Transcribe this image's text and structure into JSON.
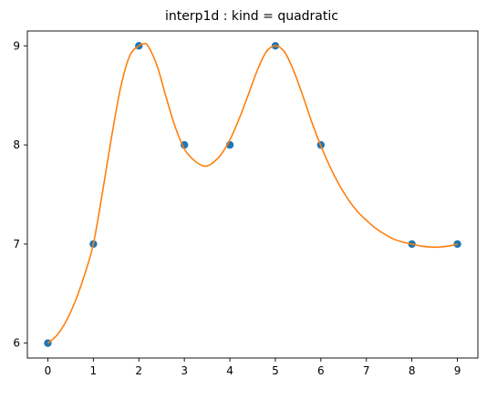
{
  "chart_data": {
    "type": "scatter",
    "title": "interp1d : kind = quadratic",
    "xlabel": "",
    "ylabel": "",
    "xlim": [
      -0.45,
      9.45
    ],
    "ylim": [
      5.85,
      9.15
    ],
    "xticks": [
      0,
      1,
      2,
      3,
      4,
      5,
      6,
      7,
      8,
      9
    ],
    "xtick_labels": [
      "0",
      "1",
      "2",
      "3",
      "4",
      "5",
      "6",
      "7",
      "8",
      "9"
    ],
    "yticks": [
      6,
      7,
      8,
      9
    ],
    "ytick_labels": [
      "6",
      "7",
      "8",
      "9"
    ],
    "grid": false,
    "legend": "none",
    "series": [
      {
        "kind": "points",
        "color": "#1f77b4",
        "x": [
          0,
          1,
          2,
          3,
          4,
          5,
          6,
          8,
          9
        ],
        "y": [
          6,
          7,
          9,
          8,
          8,
          9,
          8,
          7,
          7
        ]
      },
      {
        "kind": "line",
        "color": "#ff7f0e",
        "x": [
          0,
          0.2,
          0.4,
          0.6,
          0.8,
          1.0,
          1.2,
          1.4,
          1.6,
          1.8,
          2.0,
          2.1,
          2.2,
          2.4,
          2.6,
          2.8,
          3.0,
          3.2,
          3.4,
          3.5,
          3.6,
          3.8,
          4.0,
          4.2,
          4.4,
          4.6,
          4.8,
          5.0,
          5.2,
          5.4,
          5.6,
          5.8,
          6.0,
          6.2,
          6.4,
          6.6,
          6.8,
          7.0,
          7.2,
          7.4,
          7.6,
          7.8,
          8.0,
          8.2,
          8.4,
          8.6,
          8.8,
          9.0
        ],
        "y": [
          6.0,
          6.08,
          6.22,
          6.42,
          6.68,
          7.0,
          7.52,
          8.08,
          8.58,
          8.9,
          9.0,
          9.02,
          9.0,
          8.8,
          8.48,
          8.18,
          7.96,
          7.85,
          7.79,
          7.79,
          7.81,
          7.9,
          8.05,
          8.26,
          8.5,
          8.75,
          8.94,
          9.0,
          8.94,
          8.75,
          8.5,
          8.23,
          7.99,
          7.78,
          7.6,
          7.45,
          7.33,
          7.24,
          7.16,
          7.1,
          7.05,
          7.02,
          7.0,
          6.98,
          6.97,
          6.97,
          6.98,
          7.0
        ]
      }
    ]
  }
}
